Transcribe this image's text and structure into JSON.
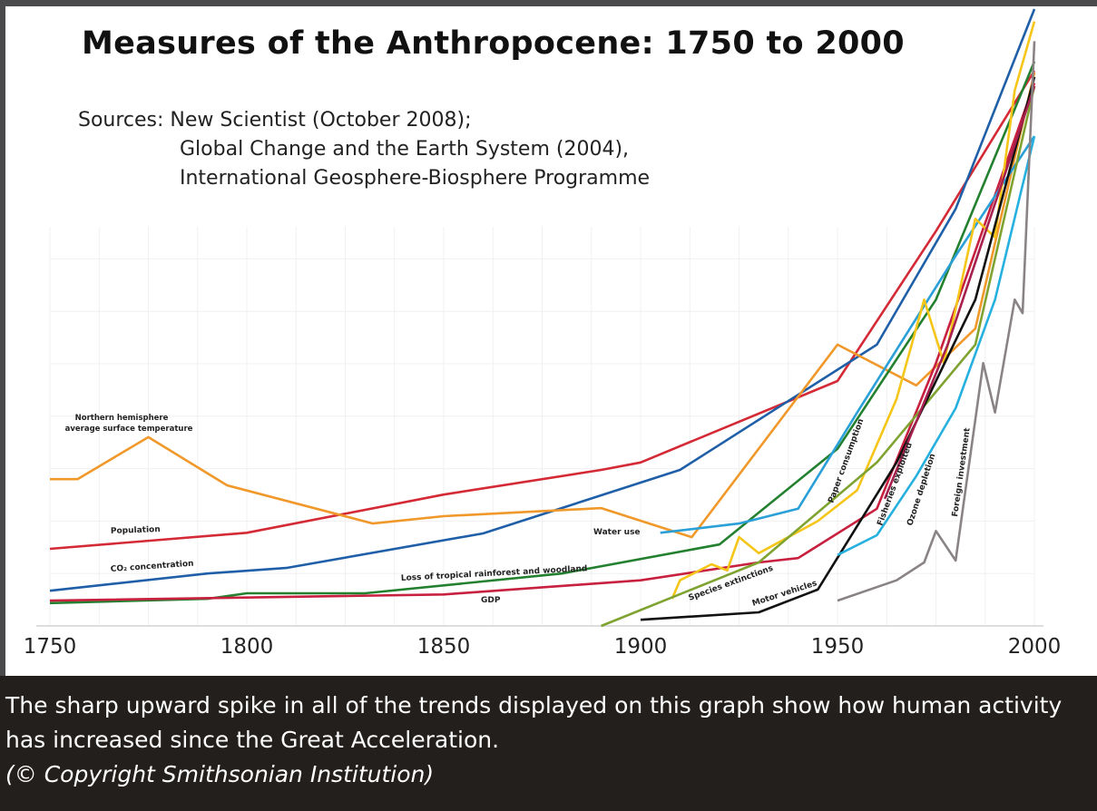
{
  "chart_data": {
    "type": "line",
    "title": "Measures of the Anthropocene:  1750 to 2000",
    "sources": [
      "Sources:  New Scientist (October 2008);",
      "Global Change and the Earth System (2004),",
      "International Geosphere-Biosphere Programme"
    ],
    "xlabel": "",
    "ylabel": "",
    "xlim": [
      1750,
      2000
    ],
    "ylim": [
      0,
      100
    ],
    "y_units": "relative index (unlabeled)",
    "x_ticks": [
      "1750",
      "1800",
      "1850",
      "1900",
      "1950",
      "2000"
    ],
    "grid": true,
    "series": [
      {
        "name": "Population",
        "color": "#d42a36",
        "x": [
          1750,
          1800,
          1850,
          1890,
          1900,
          1950,
          1975,
          2000
        ],
        "y": [
          12.5,
          15.1,
          21.3,
          25.3,
          26.5,
          39.7,
          64,
          90
        ]
      },
      {
        "name": "CO₂ concentration",
        "color": "#1f5fa8",
        "x": [
          1750,
          1790,
          1810,
          1860,
          1910,
          1960,
          1980,
          2000
        ],
        "y": [
          5.7,
          8.5,
          9.4,
          15,
          25.3,
          45.6,
          67.6,
          100
        ]
      },
      {
        "name": "Northern hemisphere average surface temperature",
        "color": "#f0982a",
        "x": [
          1750,
          1757,
          1775,
          1795,
          1832,
          1850,
          1890,
          1913,
          1950,
          1970,
          1985,
          2000
        ],
        "y": [
          23.8,
          23.8,
          30.6,
          22.8,
          16.6,
          17.8,
          19.1,
          14.4,
          45.6,
          39,
          48.2,
          89.7
        ]
      },
      {
        "name": "Loss of tropical rainforest and woodland",
        "color": "#23802f",
        "x": [
          1750,
          1790,
          1800,
          1830,
          1880,
          1920,
          1950,
          1975,
          2000
        ],
        "y": [
          3.7,
          4.4,
          5.3,
          5.3,
          8.5,
          13.2,
          28.7,
          52.9,
          91.5
        ]
      },
      {
        "name": "GDP",
        "color": "#c8203f",
        "x": [
          1750,
          1850,
          1900,
          1930,
          1940,
          1960,
          1975,
          2000
        ],
        "y": [
          4.1,
          5.1,
          7.4,
          10.3,
          11,
          19,
          42.6,
          88
        ]
      },
      {
        "name": "Water use",
        "color": "#2a9fd8",
        "x": [
          1905,
          1925,
          1940,
          1955,
          1980,
          2000
        ],
        "y": [
          15.1,
          16.6,
          19,
          34.6,
          60,
          79.4
        ]
      },
      {
        "name": "Paper consumption",
        "color": "#f5c518",
        "x": [
          1908,
          1910,
          1918,
          1922,
          1925,
          1930,
          1945,
          1955,
          1965,
          1972,
          1977,
          1985,
          1990,
          1995,
          2000
        ],
        "y": [
          4.4,
          7.4,
          10,
          9,
          14.4,
          11.8,
          17,
          22,
          36.8,
          52.9,
          42.6,
          66,
          63,
          86.8,
          98
        ]
      },
      {
        "name": "Species extinctions",
        "color": "#7fa331",
        "x": [
          1890,
          1930,
          1960,
          1985,
          2000
        ],
        "y": [
          0,
          10.3,
          26.5,
          45.6,
          87.5
        ]
      },
      {
        "name": "Motor vehicles",
        "color": "#111111",
        "x": [
          1900,
          1930,
          1945,
          1965,
          1985,
          2000
        ],
        "y": [
          1,
          2.2,
          5.9,
          26.5,
          52.9,
          89
        ]
      },
      {
        "name": "Fisheries exploited",
        "color": "#a8204e",
        "x": [
          1962,
          1978,
          2000
        ],
        "y": [
          20.6,
          45.6,
          87.5
        ]
      },
      {
        "name": "Ozone depletion",
        "color": "#26b0e0",
        "x": [
          1950,
          1960,
          1970,
          1980,
          1990,
          2000
        ],
        "y": [
          11.5,
          14.7,
          24.3,
          35.3,
          52.9,
          79.4
        ]
      },
      {
        "name": "Foreign investment",
        "color": "#8a8385",
        "x": [
          1950,
          1965,
          1972,
          1975,
          1980,
          1987,
          1990,
          1995,
          1997,
          2000
        ],
        "y": [
          4.1,
          7.4,
          10.3,
          15.4,
          10.6,
          42.6,
          34.6,
          52.9,
          50.7,
          94.8
        ]
      }
    ]
  },
  "caption": {
    "text": "The sharp upward spike in all of the trends displayed on this graph show how human activity has increased since the Great Acceleration.",
    "copyright": "(© Copyright Smithsonian Institution)"
  }
}
